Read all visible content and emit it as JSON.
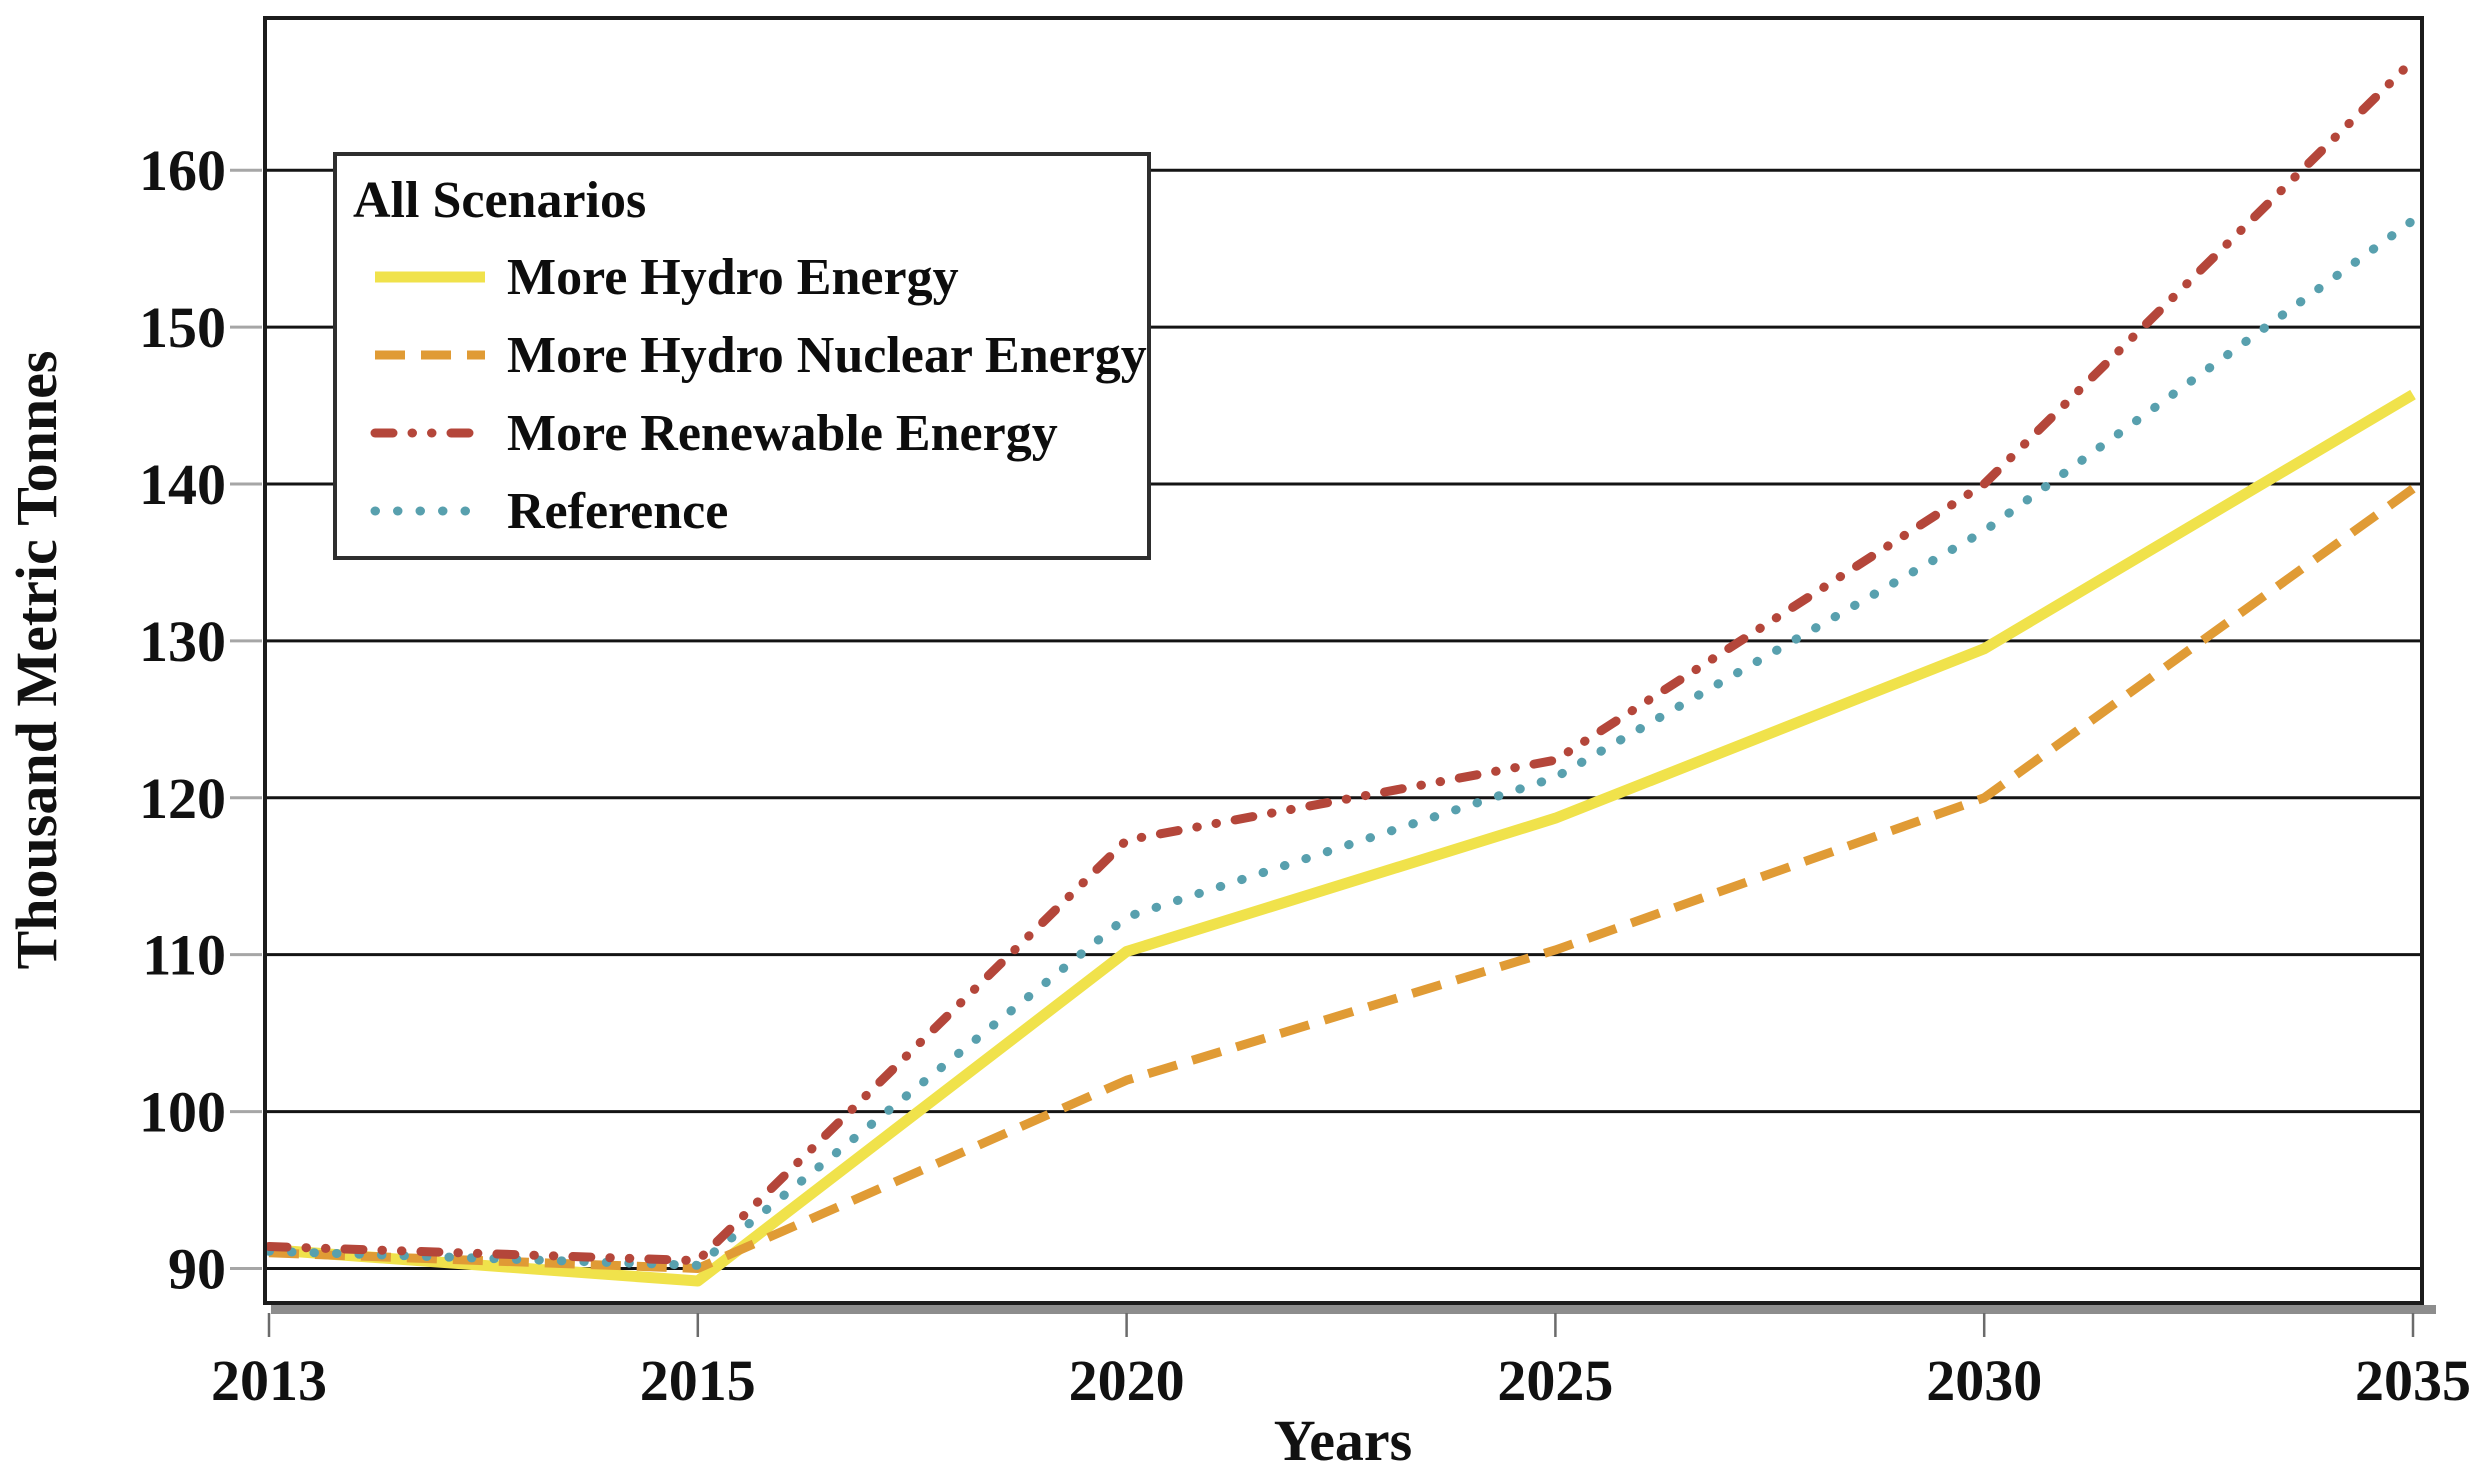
{
  "chart_data": {
    "type": "line",
    "title": "",
    "xlabel": "Years",
    "ylabel": "Thousand Metric Tonnes",
    "categories": [
      "2013",
      "2015",
      "2020",
      "2025",
      "2030",
      "2035"
    ],
    "yticks": [
      90,
      100,
      110,
      120,
      130,
      140,
      150,
      160
    ],
    "ylim": [
      87.8,
      169.7
    ],
    "grid": "horizontal-black-lines",
    "legend": {
      "title": "All Scenarios",
      "position": "top-left"
    },
    "series": [
      {
        "name": "More Hydro Energy",
        "color": "#f0e24b",
        "line_style": "solid",
        "values": [
          91.2,
          89.2,
          110.2,
          118.7,
          129.5,
          145.7
        ]
      },
      {
        "name": "More Hydro Nuclear Energy",
        "color": "#e09b35",
        "line_style": "dashed",
        "values": [
          91.0,
          90.0,
          102.0,
          110.3,
          120.0,
          139.7
        ]
      },
      {
        "name": "More Renewable Energy",
        "color": "#b4463a",
        "line_style": "dash-dot-dot",
        "values": [
          91.4,
          90.5,
          117.3,
          122.4,
          140.0,
          167.0
        ]
      },
      {
        "name": "Reference",
        "color": "#58a0ae",
        "line_style": "dotted",
        "values": [
          91.1,
          90.2,
          112.4,
          121.3,
          137.0,
          156.8
        ]
      }
    ]
  }
}
